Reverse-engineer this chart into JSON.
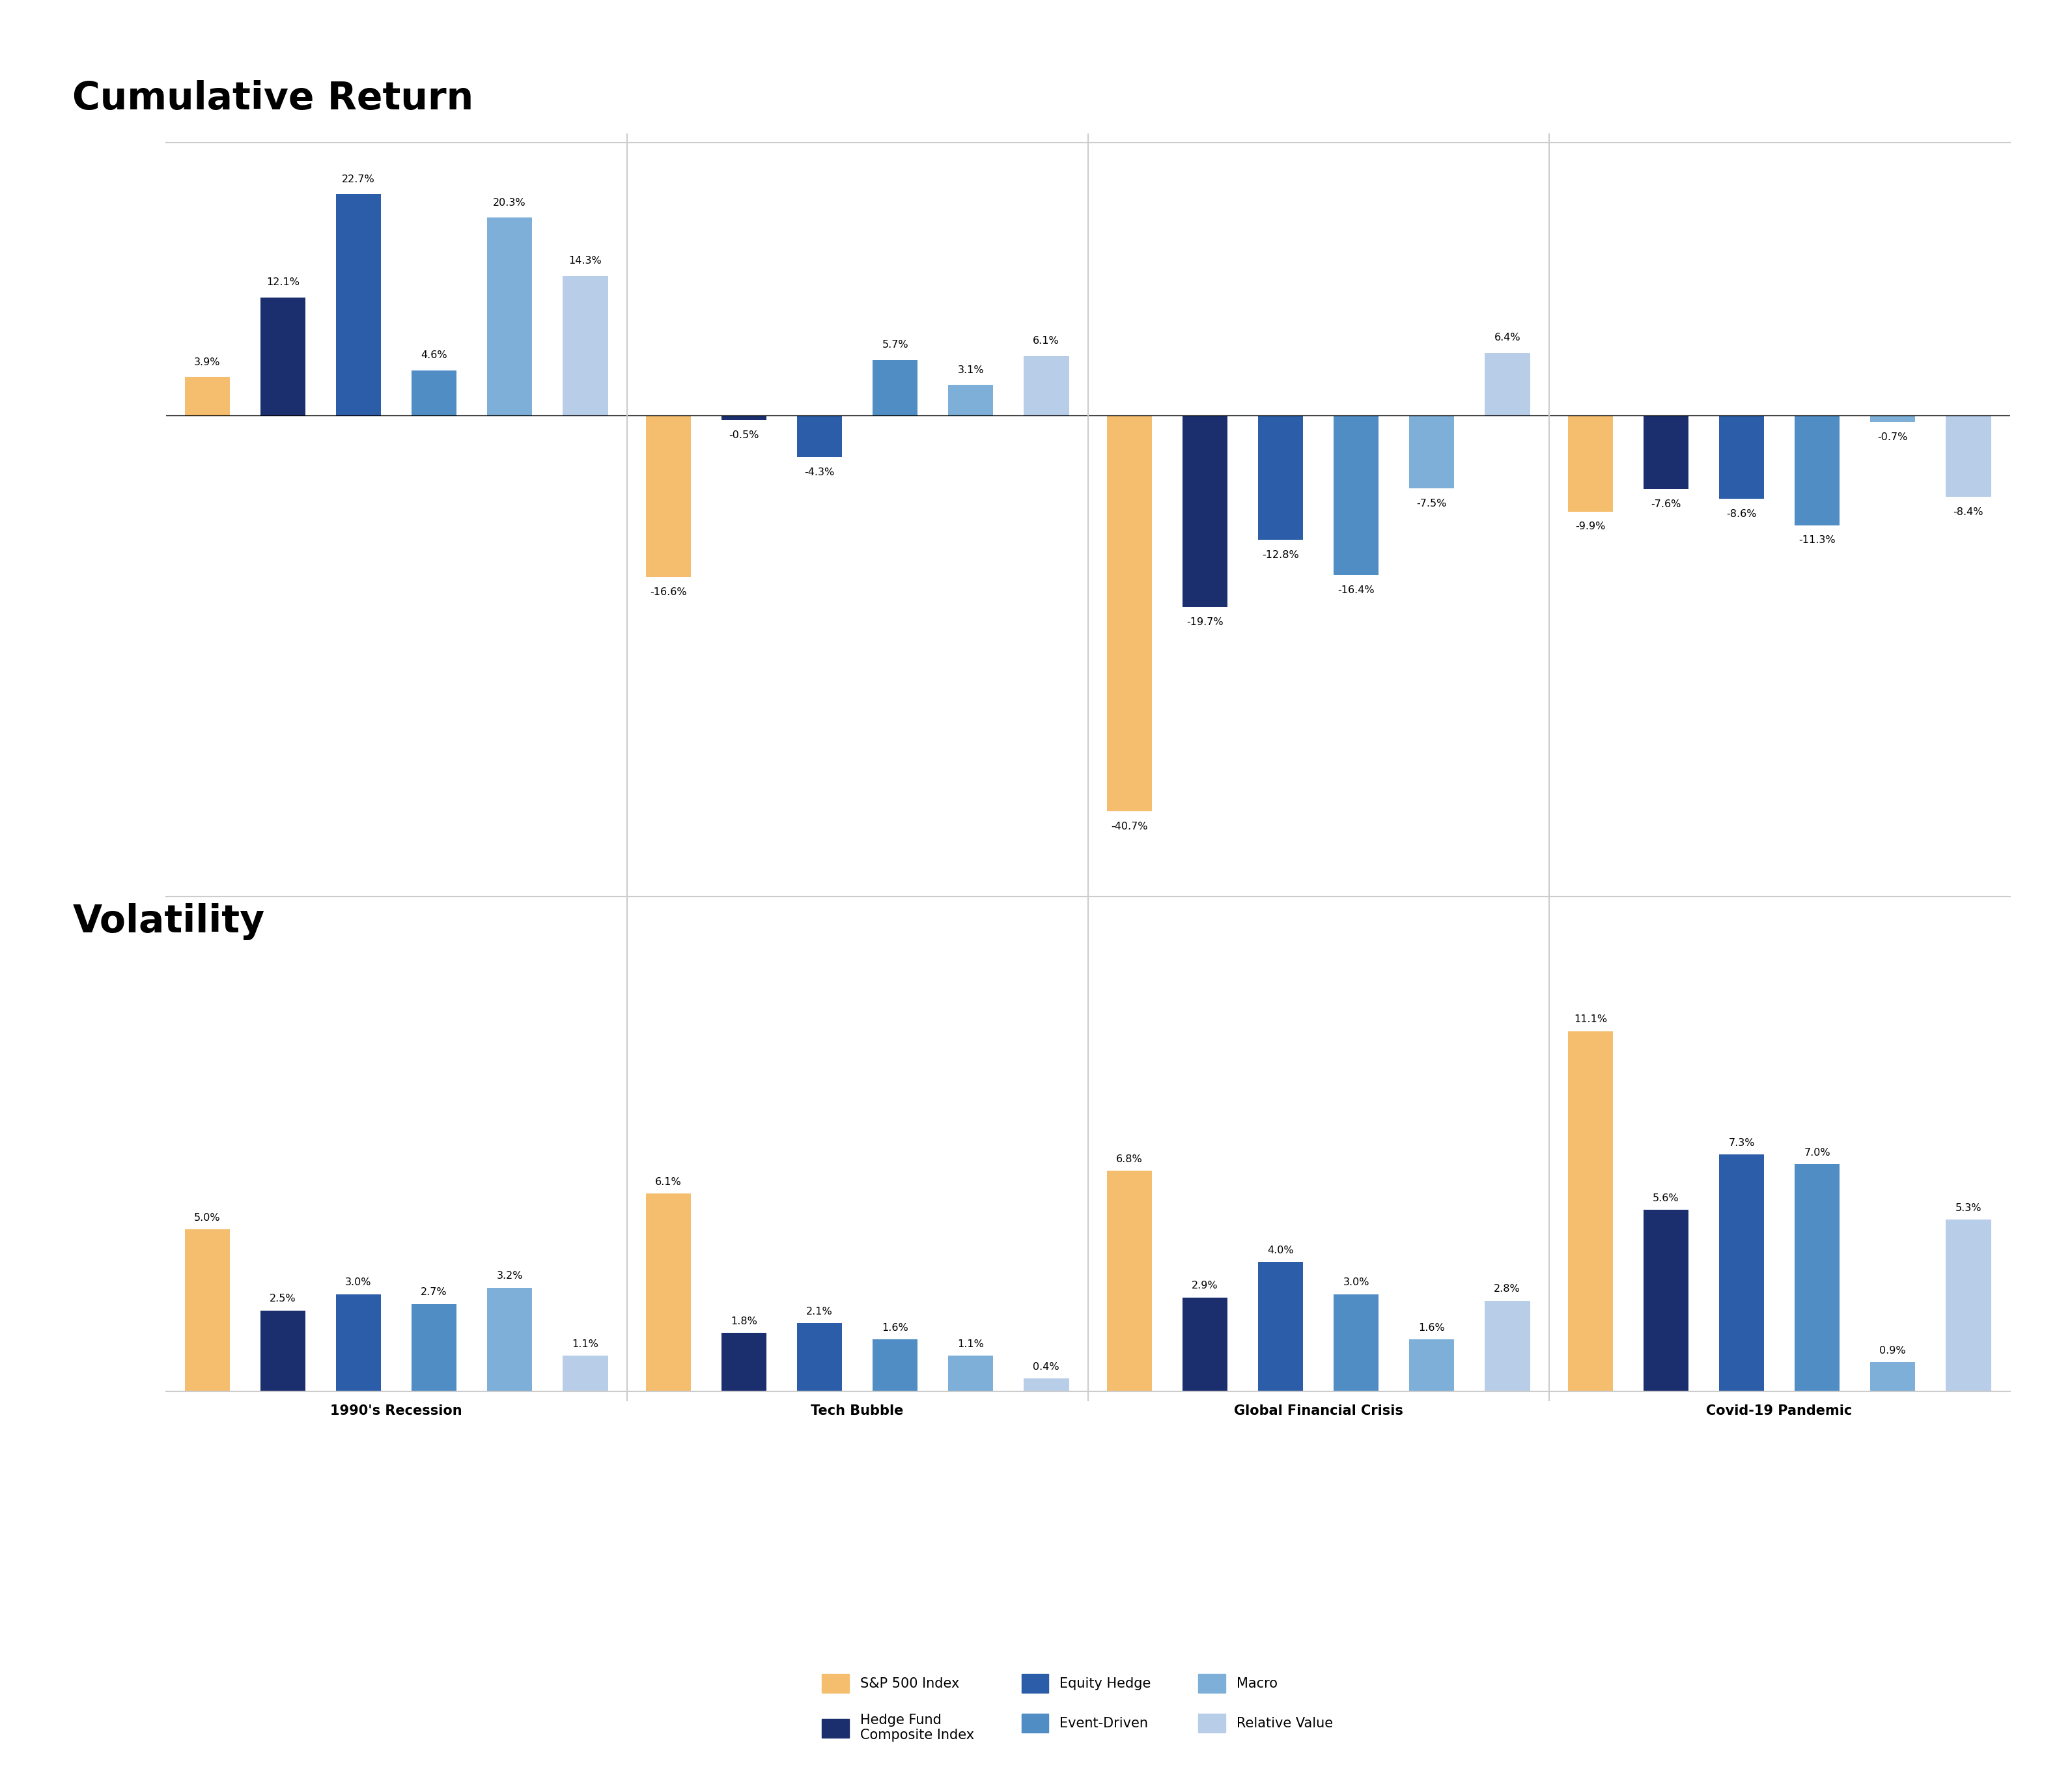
{
  "cum_return": [
    [
      3.9,
      12.1,
      22.7,
      4.6,
      20.3,
      14.3
    ],
    [
      -16.6,
      -0.5,
      -4.3,
      5.7,
      3.1,
      6.1
    ],
    [
      -40.7,
      -19.7,
      -12.8,
      -16.4,
      -7.5,
      6.4
    ],
    [
      -9.9,
      -7.6,
      -8.6,
      -11.3,
      -0.7,
      -8.4
    ]
  ],
  "volatility": [
    [
      5.0,
      2.5,
      3.0,
      2.7,
      3.2,
      1.1
    ],
    [
      6.1,
      1.8,
      2.1,
      1.6,
      1.1,
      0.4
    ],
    [
      6.8,
      2.9,
      4.0,
      3.0,
      1.6,
      2.8
    ],
    [
      11.1,
      5.6,
      7.3,
      7.0,
      0.9,
      5.3
    ]
  ],
  "colors": [
    "#F5BE6E",
    "#1B2F6E",
    "#2B5DA8",
    "#4F8DC4",
    "#7DAFD8",
    "#B8CDE8"
  ],
  "periods": [
    "1990's Recession",
    "Tech Bubble",
    "Global Financial Crisis",
    "Covid-19 Pandemic"
  ],
  "legend_labels": [
    "S&P 500 Index",
    "Hedge Fund\nComposite Index",
    "Equity Hedge",
    "Event-Driven",
    "Macro",
    "Relative Value"
  ],
  "title_return": "Cumulative Return",
  "title_volatility": "Volatility",
  "cum_ylim": [
    -47,
    28
  ],
  "vol_ylim": [
    0,
    14.5
  ],
  "bar_width": 0.6,
  "label_fontsize": 11.5,
  "period_fontsize": 15,
  "title_fontsize": 42,
  "legend_fontsize": 15,
  "divider_color": "#CCCCCC",
  "background_color": "#FFFFFF",
  "text_color": "#000000"
}
